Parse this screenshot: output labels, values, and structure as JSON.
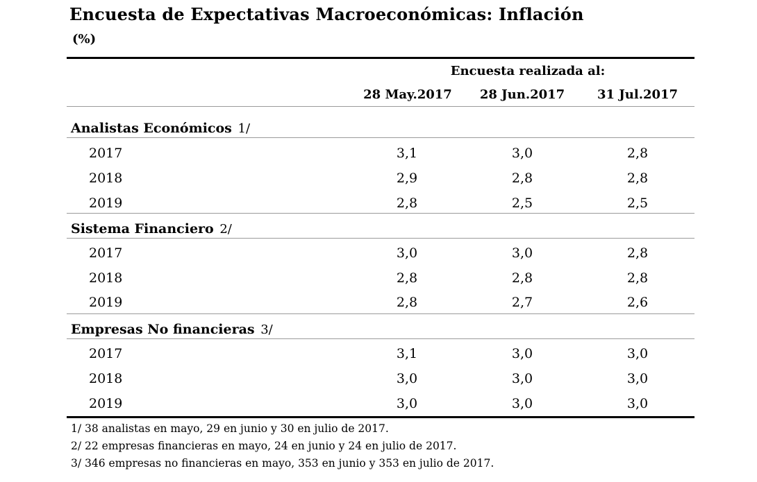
{
  "title": "Encuesta de Expectativas Macroeconómicas: Inflación",
  "unit": "(%)",
  "survey_header": "Encuesta realizada al:",
  "columns": [
    "28 May.2017",
    "28 Jun.2017",
    "31 Jul.2017"
  ],
  "sections": [
    {
      "label": "Analistas Económicos",
      "note": "1/",
      "rows": [
        {
          "year": "2017",
          "values": [
            "3,1",
            "3,0",
            "2,8"
          ]
        },
        {
          "year": "2018",
          "values": [
            "2,9",
            "2,8",
            "2,8"
          ]
        },
        {
          "year": "2019",
          "values": [
            "2,8",
            "2,5",
            "2,5"
          ]
        }
      ]
    },
    {
      "label": "Sistema Financiero",
      "note": "2/",
      "rows": [
        {
          "year": "2017",
          "values": [
            "3,0",
            "3,0",
            "2,8"
          ]
        },
        {
          "year": "2018",
          "values": [
            "2,8",
            "2,8",
            "2,8"
          ]
        },
        {
          "year": "2019",
          "values": [
            "2,8",
            "2,7",
            "2,6"
          ]
        }
      ]
    },
    {
      "label": "Empresas No financieras",
      "note": "3/",
      "rows": [
        {
          "year": "2017",
          "values": [
            "3,1",
            "3,0",
            "3,0"
          ]
        },
        {
          "year": "2018",
          "values": [
            "3,0",
            "3,0",
            "3,0"
          ]
        },
        {
          "year": "2019",
          "values": [
            "3,0",
            "3,0",
            "3,0"
          ]
        }
      ]
    }
  ],
  "footnotes": [
    "1/ 38 analistas en mayo, 29 en junio y 30 en julio de 2017.",
    "2/ 22 empresas financieras en mayo, 24 en junio y 24 en julio de 2017.",
    "3/ 346 empresas no financieras en mayo, 353 en junio y 353 en julio de 2017."
  ]
}
